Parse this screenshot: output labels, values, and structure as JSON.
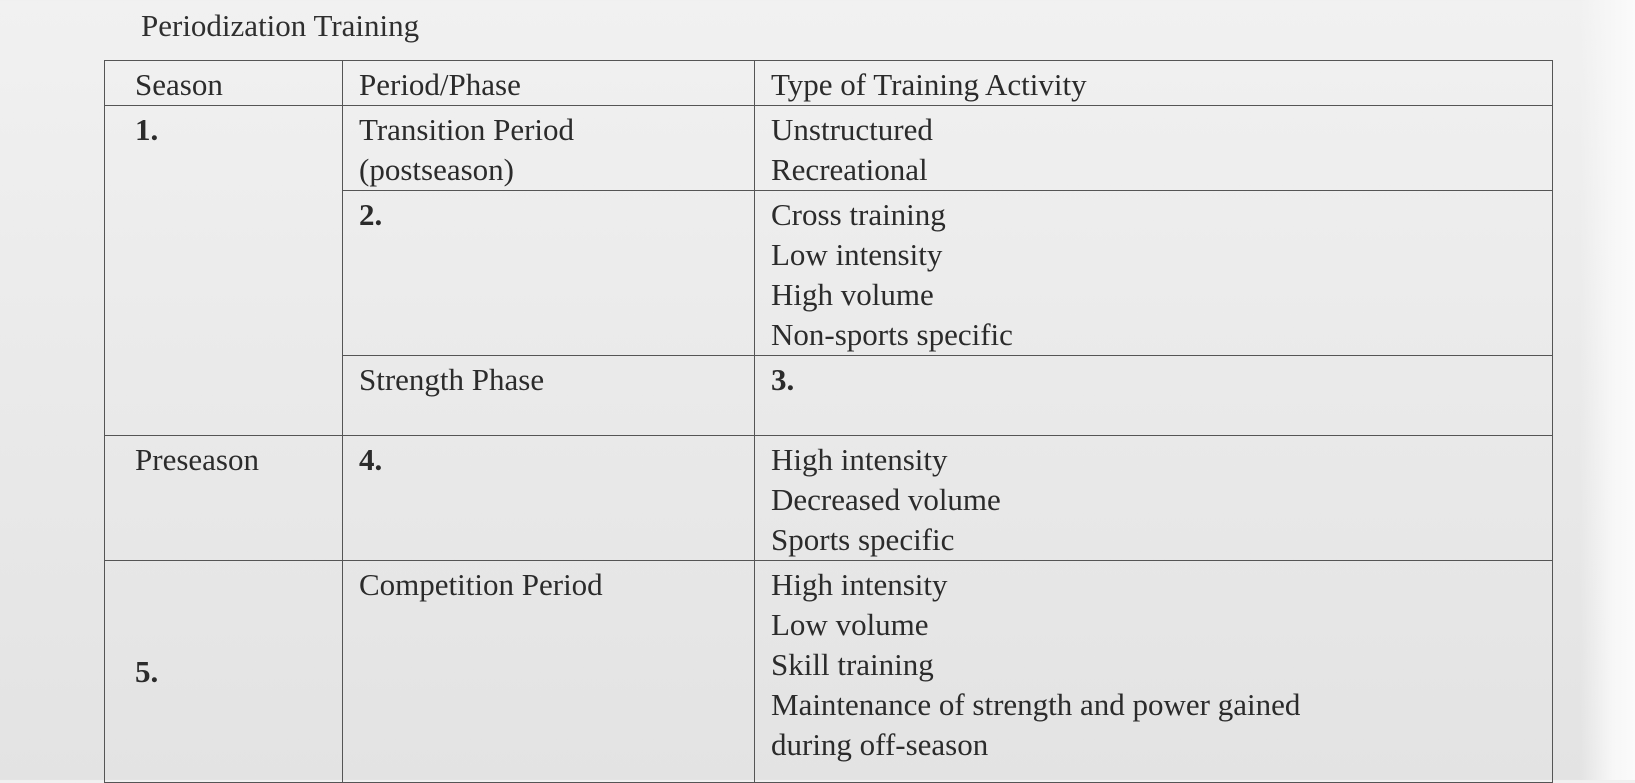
{
  "title": "Periodization Training",
  "table": {
    "headers": [
      "Season",
      "Period/Phase",
      "Type of Training Activity"
    ],
    "row1": {
      "season": "1.",
      "phase": [
        "Transition Period",
        "(postseason)"
      ],
      "activities": [
        "Unstructured",
        "Recreational"
      ]
    },
    "row2": {
      "phase": "2.",
      "activities": [
        "Cross training",
        "Low intensity",
        "High volume",
        "Non-sports specific"
      ]
    },
    "row3": {
      "phase": "Strength Phase",
      "activities": "3."
    },
    "row4": {
      "season": "Preseason",
      "phase": "4.",
      "activities": [
        "High intensity",
        "Decreased volume",
        "Sports specific"
      ]
    },
    "row5": {
      "season": "5.",
      "phase": "Competition Period",
      "activities": [
        "High intensity",
        "Low volume",
        "Skill training",
        "Maintenance of strength and power gained",
        "during off-season"
      ]
    }
  }
}
